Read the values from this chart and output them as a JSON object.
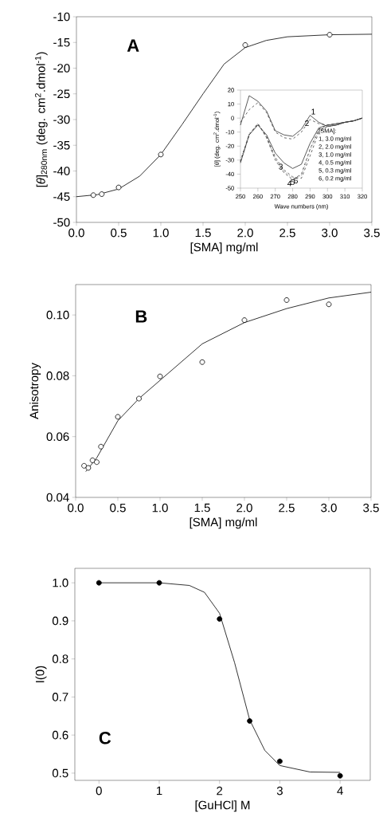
{
  "chart_data": [
    {
      "type": "scatter",
      "xlabel": "[SMA] mg/ml",
      "ylabel": "[*θ*]$_{280nm}$ (deg. cm$^{2}$.dmol$^{-1}$)",
      "annotations": [
        "A"
      ],
      "xlim": [
        0,
        3.5
      ],
      "ylim": [
        -50,
        -10
      ],
      "xticks": [
        {
          "value": 0,
          "label": "0.0"
        },
        {
          "value": 0.5,
          "label": "0.5"
        },
        {
          "value": 1,
          "label": "1.0"
        },
        {
          "value": 1.5,
          "label": "1.5"
        },
        {
          "value": 2,
          "label": "2.0"
        },
        {
          "value": 2.5,
          "label": "2.5"
        },
        {
          "value": 3,
          "label": "3.0"
        },
        {
          "value": 3.5,
          "label": "3.5"
        }
      ],
      "yticks": [
        -50,
        -45,
        -40,
        -35,
        -30,
        -25,
        -20,
        -15,
        -10
      ],
      "series": [
        {
          "type": "scatter",
          "marker": "circle",
          "color": "#ffffff",
          "x": [
            0.2,
            0.3,
            0.5,
            1.0,
            2.0,
            3.0
          ],
          "values": [
            -44.7,
            -44.5,
            -43.2,
            -36.8,
            -15.5,
            -13.5
          ]
        },
        {
          "type": "line",
          "color": "#000000",
          "x": [
            0,
            0.25,
            0.5,
            0.75,
            1.0,
            1.25,
            1.5,
            1.75,
            2.0,
            2.25,
            2.5,
            3.0,
            3.5
          ],
          "values": [
            -45,
            -44.6,
            -43.5,
            -41,
            -36.8,
            -31,
            -25,
            -19.2,
            -16,
            -14.6,
            -13.9,
            -13.5,
            -13.4
          ]
        }
      ]
    },
    {
      "type": "line",
      "xlabel": "Wave numbers (nm)",
      "ylabel": "[*θ*] (deg. cm$^{2}$.dmol$^{-1}$)",
      "annotations": [
        "[SMA]:",
        "1, 3.0 mg/ml",
        "2, 2.0 mg/ml",
        "3, 1.0 mg/ml",
        "4, 0.5 mg/ml",
        "5, 0.3 mg/ml",
        "6, 0.2 mg/ml"
      ],
      "x": [
        250,
        255,
        260,
        265,
        270,
        275,
        280,
        285,
        290,
        295,
        300,
        305,
        310,
        315,
        320
      ],
      "xlim": [
        250,
        320
      ],
      "ylim": [
        -50,
        20
      ],
      "xticks": [
        250,
        260,
        270,
        280,
        290,
        300,
        310,
        320
      ],
      "yticks": [
        -50,
        -40,
        -30,
        -20,
        -10,
        0,
        10,
        20
      ],
      "series": [
        {
          "name": "1",
          "color": "#303030",
          "line_style": "solid",
          "values": [
            -5,
            16,
            12,
            5,
            -9,
            -12,
            -13,
            -8,
            2,
            -3,
            -6,
            -5,
            -3,
            -2,
            0
          ]
        },
        {
          "name": "2",
          "color": "#404040",
          "line_style": "dashed",
          "values": [
            -3,
            6,
            11,
            4,
            -10,
            -14,
            -15,
            -10,
            -1,
            -4,
            -5,
            -4,
            -3,
            -2,
            0
          ]
        },
        {
          "name": "3",
          "color": "#303030",
          "line_style": "solid",
          "values": [
            -32,
            -12,
            -5,
            -12,
            -25,
            -32,
            -36,
            -33,
            -18,
            -7,
            -5,
            -4,
            -3,
            -2,
            0
          ]
        },
        {
          "name": "4",
          "color": "#404040",
          "line_style": "dashed",
          "values": [
            -31,
            -12,
            -4,
            -14,
            -30,
            -39,
            -44,
            -40,
            -22,
            -8,
            -5,
            -5,
            -3,
            -2,
            0
          ]
        },
        {
          "name": "5",
          "color": "#505050",
          "line_style": "dotted",
          "values": [
            -30,
            -11,
            -4,
            -14,
            -29,
            -38,
            -43,
            -41,
            -23,
            -9,
            -6,
            -5,
            -3,
            -2,
            0
          ]
        },
        {
          "name": "6",
          "color": "#404040",
          "line_style": "dashed",
          "values": [
            -31,
            -12,
            -4,
            -13,
            -28,
            -37,
            -42,
            -43,
            -27,
            -10,
            -6,
            -5,
            -3,
            -2,
            0
          ]
        }
      ]
    },
    {
      "type": "scatter",
      "xlabel": "[SMA] mg/ml",
      "ylabel": "Anisotropy",
      "annotations": [
        "B"
      ],
      "xlim": [
        0,
        3.5
      ],
      "ylim": [
        0.04,
        0.11
      ],
      "xticks": [
        {
          "value": 0,
          "label": "0.0"
        },
        {
          "value": 0.5,
          "label": "0.5"
        },
        {
          "value": 1,
          "label": "1.0"
        },
        {
          "value": 1.5,
          "label": "1.5"
        },
        {
          "value": 2,
          "label": "2.0"
        },
        {
          "value": 2.5,
          "label": "2.5"
        },
        {
          "value": 3,
          "label": "3.0"
        },
        {
          "value": 3.5,
          "label": "3.5"
        }
      ],
      "yticks": [
        {
          "value": 0.04,
          "label": "0.04"
        },
        {
          "value": 0.06,
          "label": "0.06"
        },
        {
          "value": 0.08,
          "label": "0.08"
        },
        {
          "value": 0.1,
          "label": "0.10"
        }
      ],
      "series": [
        {
          "type": "scatter",
          "marker": "circle",
          "color": "#ffffff",
          "x": [
            0.1,
            0.15,
            0.2,
            0.25,
            0.3,
            0.5,
            0.75,
            1.0,
            1.5,
            2.0,
            2.5,
            3.0
          ],
          "values": [
            0.0504,
            0.0497,
            0.0522,
            0.0516,
            0.0567,
            0.0665,
            0.0725,
            0.0798,
            0.0845,
            0.0983,
            0.1049,
            0.1035
          ]
        },
        {
          "type": "line",
          "color": "#000000",
          "x": [
            0.12,
            0.25,
            0.5,
            0.75,
            1.0,
            1.5,
            2.0,
            2.5,
            3.0,
            3.5
          ],
          "values": [
            0.0485,
            0.053,
            0.0652,
            0.0725,
            0.0785,
            0.0905,
            0.0975,
            0.1021,
            0.1056,
            0.1075
          ]
        }
      ]
    },
    {
      "type": "scatter",
      "xlabel": "[GuHCl] M",
      "ylabel": "I(0)",
      "annotations": [
        "C"
      ],
      "xlim": [
        -0.4,
        4.5
      ],
      "ylim": [
        0.481,
        1.038
      ],
      "xticks": [
        0,
        1,
        2,
        3,
        4
      ],
      "yticks": [
        {
          "value": 0.5,
          "label": "0.5"
        },
        {
          "value": 0.6,
          "label": "0.6"
        },
        {
          "value": 0.7,
          "label": "0.7"
        },
        {
          "value": 0.8,
          "label": "0.8"
        },
        {
          "value": 0.9,
          "label": "0.9"
        },
        {
          "value": 1.0,
          "label": "1.0"
        }
      ],
      "series": [
        {
          "type": "scatter",
          "marker": "circle",
          "color": "#000000",
          "x": [
            0,
            1,
            2,
            2.5,
            3,
            4
          ],
          "values": [
            1.0,
            1.0,
            0.905,
            0.637,
            0.531,
            0.493
          ]
        },
        {
          "type": "line",
          "color": "#000000",
          "x": [
            0,
            1,
            1.5,
            1.75,
            2.0,
            2.25,
            2.5,
            2.75,
            3.0,
            3.5,
            4.0
          ],
          "values": [
            1.0,
            1.0,
            0.993,
            0.975,
            0.92,
            0.79,
            0.64,
            0.56,
            0.52,
            0.503,
            0.502
          ]
        }
      ]
    }
  ]
}
